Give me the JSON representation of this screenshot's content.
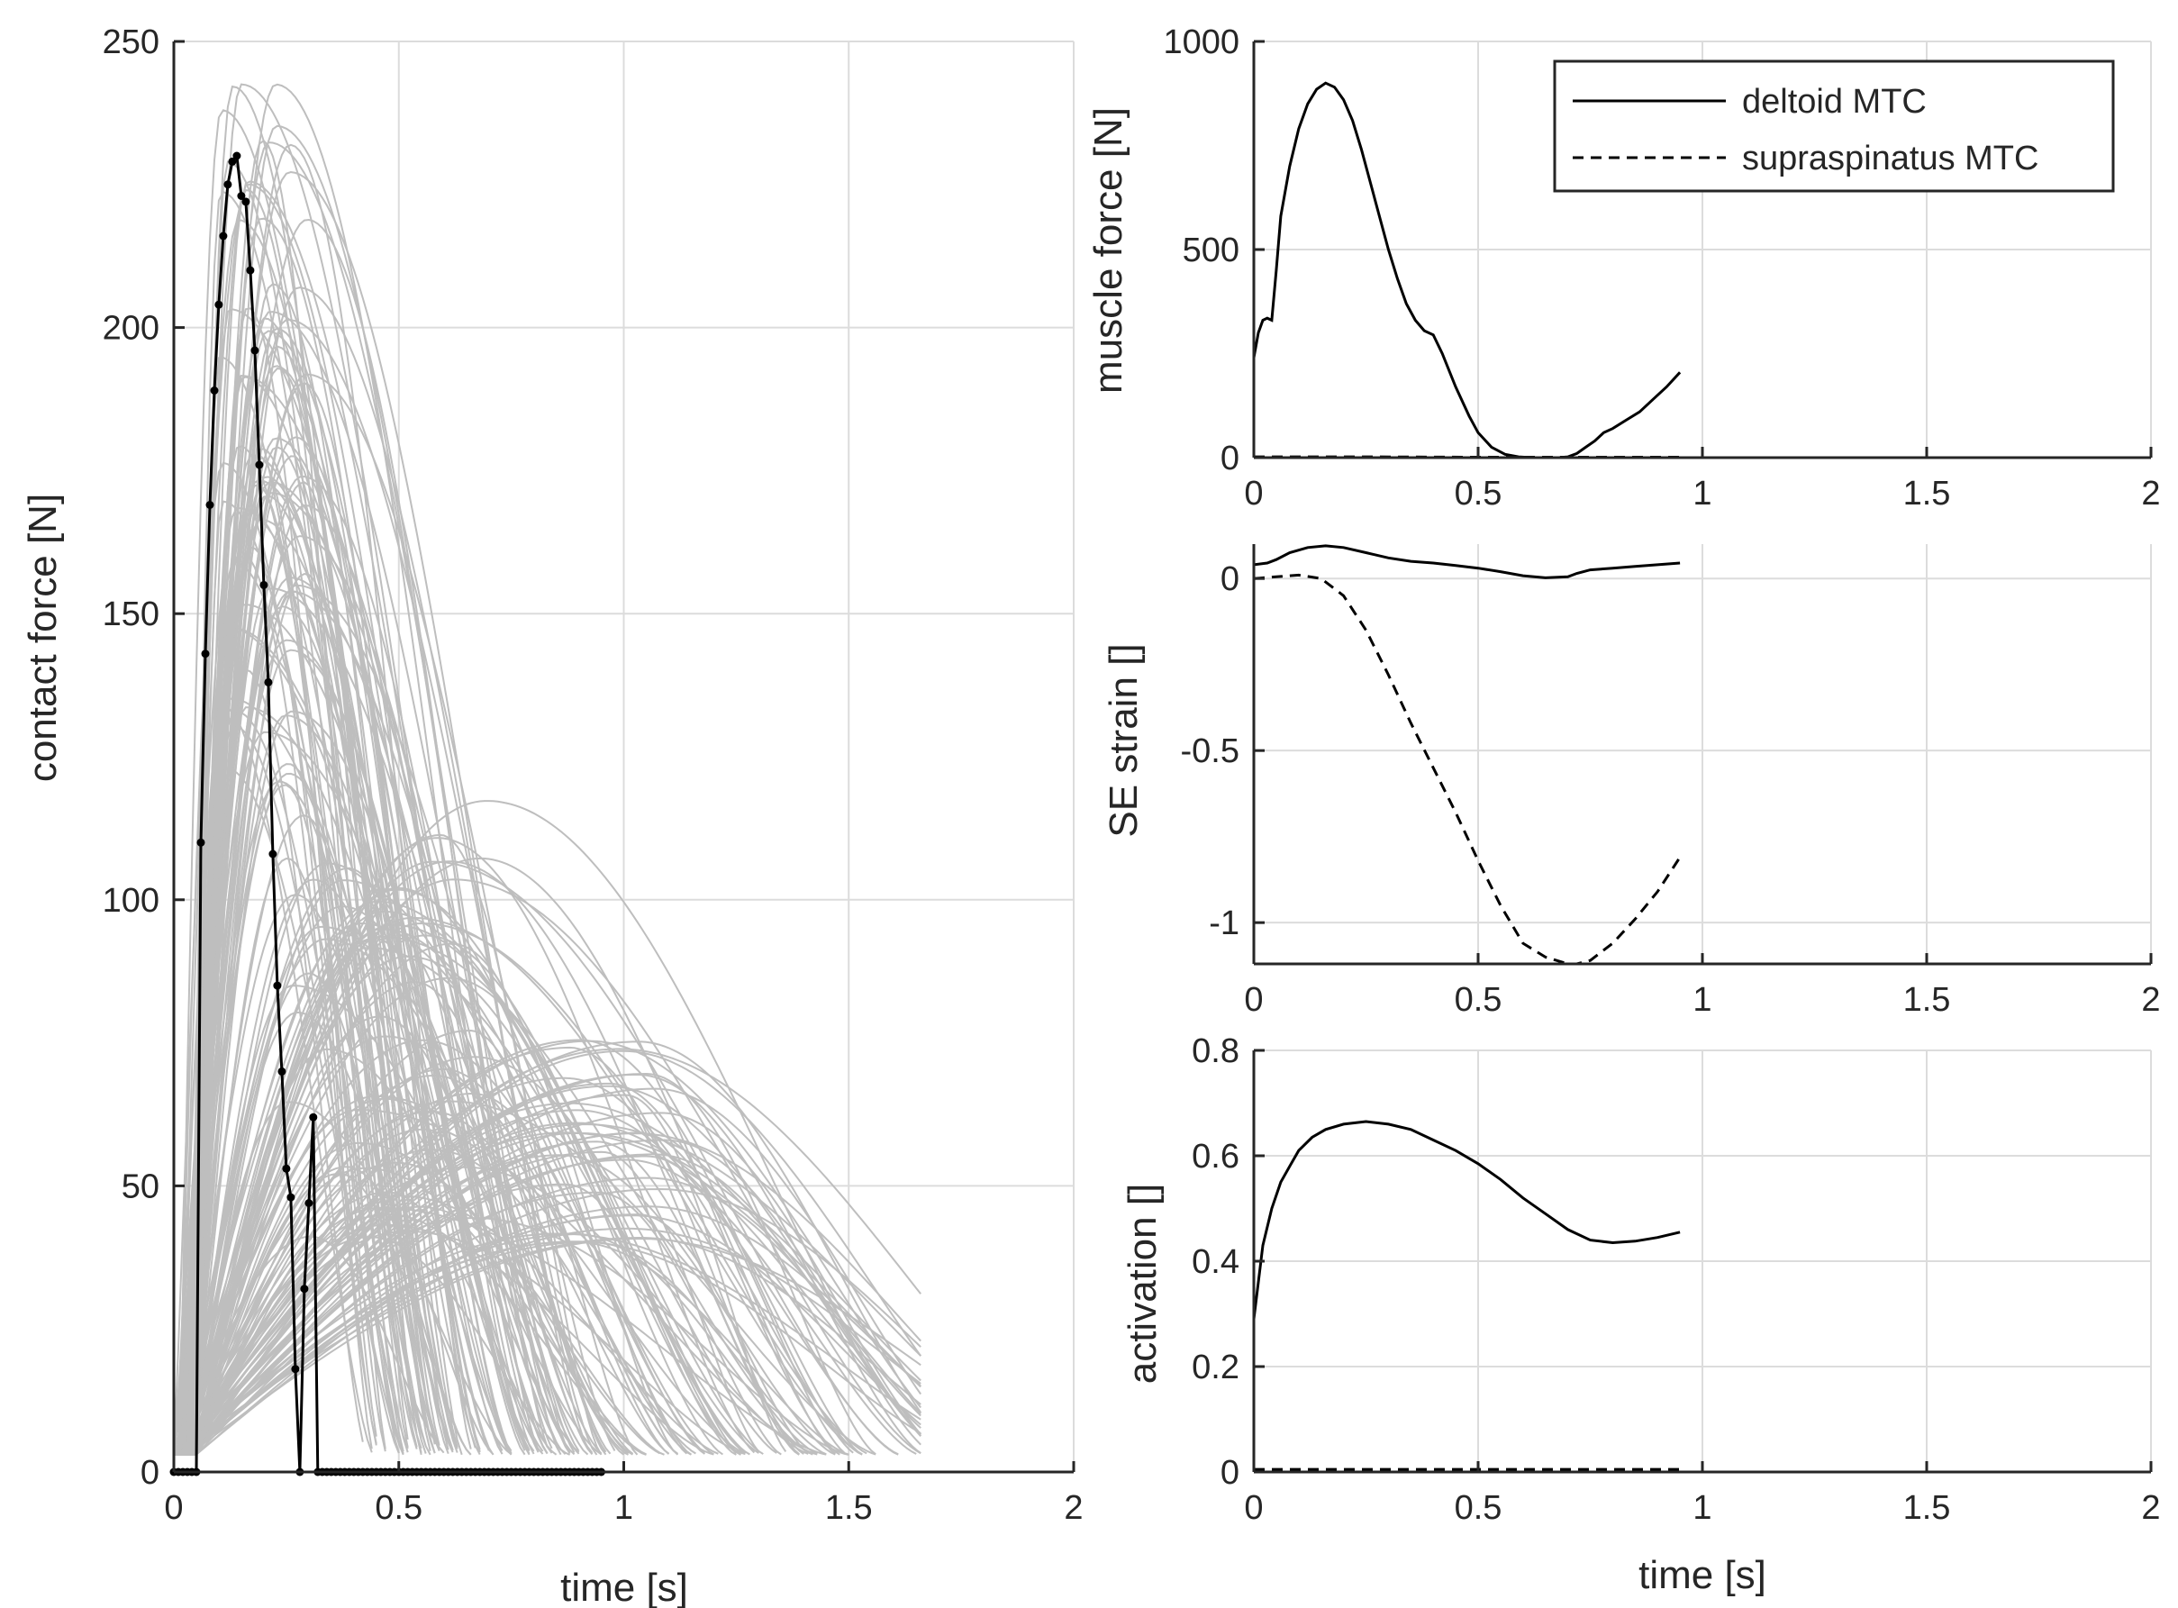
{
  "chart_data": [
    {
      "id": "contact",
      "type": "line",
      "title": "",
      "xlabel": "time [s]",
      "ylabel": "contact force [N]",
      "xlim": [
        0,
        2
      ],
      "ylim": [
        0,
        250
      ],
      "xticks": [
        0,
        0.5,
        1,
        1.5,
        2
      ],
      "xtick_labels": [
        "0",
        "0.5",
        "1",
        "1.5",
        "2"
      ],
      "yticks": [
        0,
        50,
        100,
        150,
        200,
        250
      ],
      "ytick_labels": [
        "0",
        "50",
        "100",
        "150",
        "200",
        "250"
      ],
      "grid": true,
      "background_series": {
        "name": "simulated contact forces (ensemble)",
        "color": "#bebebe",
        "count": 200,
        "onset_range_s": [
          0.0,
          0.05
        ],
        "peak_time_range_s": [
          0.08,
          1.1
        ],
        "peak_value_range_N": [
          25,
          243
        ],
        "end_time_max_s": 1.67
      },
      "series": [
        {
          "name": "measured contact force",
          "color": "#000000",
          "marker": "dot",
          "x": [
            0,
            0.01,
            0.02,
            0.03,
            0.04,
            0.05,
            0.06,
            0.07,
            0.08,
            0.09,
            0.1,
            0.11,
            0.12,
            0.13,
            0.14,
            0.15,
            0.16,
            0.17,
            0.18,
            0.19,
            0.2,
            0.21,
            0.22,
            0.23,
            0.24,
            0.25,
            0.26,
            0.27,
            0.28,
            0.29,
            0.3,
            0.31,
            0.32,
            0.33,
            0.34,
            0.35,
            0.36,
            0.37,
            0.38,
            0.39,
            0.4,
            0.41,
            0.42,
            0.43,
            0.44,
            0.45,
            0.46,
            0.47,
            0.48,
            0.49,
            0.5,
            0.51,
            0.52,
            0.53,
            0.54,
            0.55,
            0.56,
            0.57,
            0.58,
            0.59,
            0.6,
            0.61,
            0.62,
            0.63,
            0.64,
            0.65,
            0.66,
            0.67,
            0.68,
            0.69,
            0.7,
            0.71,
            0.72,
            0.73,
            0.74,
            0.75,
            0.76,
            0.77,
            0.78,
            0.79,
            0.8,
            0.81,
            0.82,
            0.83,
            0.84,
            0.85,
            0.86,
            0.87,
            0.88,
            0.89,
            0.9,
            0.91,
            0.92,
            0.93,
            0.94,
            0.95
          ],
          "y": [
            0,
            0,
            0,
            0,
            0,
            0,
            110,
            143,
            169,
            189,
            204,
            216,
            225,
            229,
            230,
            223,
            222,
            210,
            196,
            176,
            155,
            138,
            108,
            85,
            70,
            53,
            48,
            18,
            0,
            32,
            47,
            62,
            0,
            0,
            0,
            0,
            0,
            0,
            0,
            0,
            0,
            0,
            0,
            0,
            0,
            0,
            0,
            0,
            0,
            0,
            0,
            0,
            0,
            0,
            0,
            0,
            0,
            0,
            0,
            0,
            0,
            0,
            0,
            0,
            0,
            0,
            0,
            0,
            0,
            0,
            0,
            0,
            0,
            0,
            0,
            0,
            0,
            0,
            0,
            0,
            0,
            0,
            0,
            0,
            0,
            0,
            0,
            0,
            0,
            0,
            0,
            0,
            0,
            0,
            0,
            0
          ]
        }
      ]
    },
    {
      "id": "muscle",
      "type": "line",
      "title": "",
      "xlabel": "",
      "ylabel": "muscle force [N]",
      "xlim": [
        0,
        2
      ],
      "ylim": [
        0,
        1000
      ],
      "xticks": [
        0,
        0.5,
        1,
        1.5,
        2
      ],
      "xtick_labels": [
        "0",
        "0.5",
        "1",
        "1.5",
        "2"
      ],
      "yticks": [
        0,
        500,
        1000
      ],
      "ytick_labels": [
        "0",
        "500",
        "1000"
      ],
      "grid": true,
      "legend": {
        "location": "top-right",
        "entries": [
          {
            "label": "deltoid MTC",
            "style": "solid"
          },
          {
            "label": "supraspinatus MTC",
            "style": "dashed"
          }
        ]
      },
      "series": [
        {
          "name": "deltoid MTC",
          "style": "solid",
          "x": [
            0,
            0.01,
            0.02,
            0.03,
            0.04,
            0.05,
            0.06,
            0.08,
            0.1,
            0.12,
            0.14,
            0.16,
            0.18,
            0.2,
            0.22,
            0.24,
            0.26,
            0.28,
            0.3,
            0.32,
            0.34,
            0.36,
            0.38,
            0.4,
            0.42,
            0.45,
            0.48,
            0.5,
            0.53,
            0.56,
            0.59,
            0.62,
            0.65,
            0.68,
            0.7,
            0.72,
            0.74,
            0.76,
            0.78,
            0.8,
            0.83,
            0.86,
            0.89,
            0.92,
            0.95
          ],
          "y": [
            240,
            300,
            330,
            335,
            330,
            450,
            580,
            700,
            790,
            850,
            885,
            900,
            890,
            860,
            810,
            740,
            660,
            580,
            500,
            430,
            370,
            330,
            305,
            295,
            250,
            170,
            100,
            60,
            25,
            8,
            2,
            0,
            0,
            0,
            2,
            10,
            25,
            40,
            60,
            70,
            90,
            110,
            140,
            170,
            205
          ]
        },
        {
          "name": "supraspinatus MTC",
          "style": "dashed",
          "x": [
            0,
            0.25,
            0.5,
            0.75,
            0.95
          ],
          "y": [
            2,
            2,
            1,
            1,
            1
          ]
        }
      ]
    },
    {
      "id": "strain",
      "type": "line",
      "title": "",
      "xlabel": "",
      "ylabel": "SE strain []",
      "xlim": [
        0,
        2
      ],
      "ylim": [
        -1.12,
        0.1
      ],
      "xticks": [
        0,
        0.5,
        1,
        1.5,
        2
      ],
      "xtick_labels": [
        "0",
        "0.5",
        "1",
        "1.5",
        "2"
      ],
      "yticks": [
        -1,
        -0.5,
        0
      ],
      "ytick_labels": [
        "-1",
        "-0.5",
        "0"
      ],
      "grid": true,
      "series": [
        {
          "name": "deltoid MTC",
          "style": "solid",
          "x": [
            0,
            0.03,
            0.05,
            0.08,
            0.12,
            0.16,
            0.2,
            0.25,
            0.3,
            0.35,
            0.4,
            0.45,
            0.5,
            0.55,
            0.6,
            0.65,
            0.7,
            0.72,
            0.75,
            0.8,
            0.85,
            0.9,
            0.95
          ],
          "y": [
            0.04,
            0.045,
            0.055,
            0.075,
            0.09,
            0.095,
            0.09,
            0.075,
            0.06,
            0.05,
            0.045,
            0.038,
            0.03,
            0.02,
            0.008,
            0.002,
            0.005,
            0.015,
            0.025,
            0.03,
            0.035,
            0.04,
            0.045
          ]
        },
        {
          "name": "supraspinatus MTC",
          "style": "dashed",
          "x": [
            0,
            0.05,
            0.1,
            0.15,
            0.2,
            0.25,
            0.3,
            0.35,
            0.4,
            0.45,
            0.5,
            0.55,
            0.6,
            0.65,
            0.7,
            0.72,
            0.75,
            0.8,
            0.85,
            0.9,
            0.95
          ],
          "y": [
            0.0,
            0.005,
            0.01,
            0.0,
            -0.05,
            -0.15,
            -0.28,
            -0.42,
            -0.55,
            -0.68,
            -0.82,
            -0.95,
            -1.06,
            -1.1,
            -1.12,
            -1.12,
            -1.11,
            -1.06,
            -0.99,
            -0.91,
            -0.81
          ]
        }
      ]
    },
    {
      "id": "activation",
      "type": "line",
      "title": "",
      "xlabel": "time [s]",
      "ylabel": "activation []",
      "xlim": [
        0,
        2
      ],
      "ylim": [
        0,
        0.8
      ],
      "xticks": [
        0,
        0.5,
        1,
        1.5,
        2
      ],
      "xtick_labels": [
        "0",
        "0.5",
        "1",
        "1.5",
        "2"
      ],
      "yticks": [
        0,
        0.2,
        0.4,
        0.6,
        0.8
      ],
      "ytick_labels": [
        "0",
        "0.2",
        "0.4",
        "0.6",
        "0.8"
      ],
      "grid": true,
      "series": [
        {
          "name": "deltoid MTC",
          "style": "solid",
          "x": [
            0,
            0.02,
            0.04,
            0.06,
            0.08,
            0.1,
            0.13,
            0.16,
            0.2,
            0.25,
            0.3,
            0.35,
            0.4,
            0.45,
            0.5,
            0.55,
            0.6,
            0.65,
            0.7,
            0.75,
            0.8,
            0.85,
            0.9,
            0.95
          ],
          "y": [
            0.29,
            0.43,
            0.5,
            0.55,
            0.58,
            0.61,
            0.635,
            0.65,
            0.66,
            0.665,
            0.66,
            0.65,
            0.63,
            0.61,
            0.585,
            0.555,
            0.52,
            0.49,
            0.46,
            0.44,
            0.435,
            0.438,
            0.445,
            0.455
          ]
        },
        {
          "name": "supraspinatus MTC",
          "style": "dashed",
          "x": [
            0,
            0.5,
            0.95
          ],
          "y": [
            0.005,
            0.005,
            0.005
          ]
        }
      ]
    }
  ]
}
